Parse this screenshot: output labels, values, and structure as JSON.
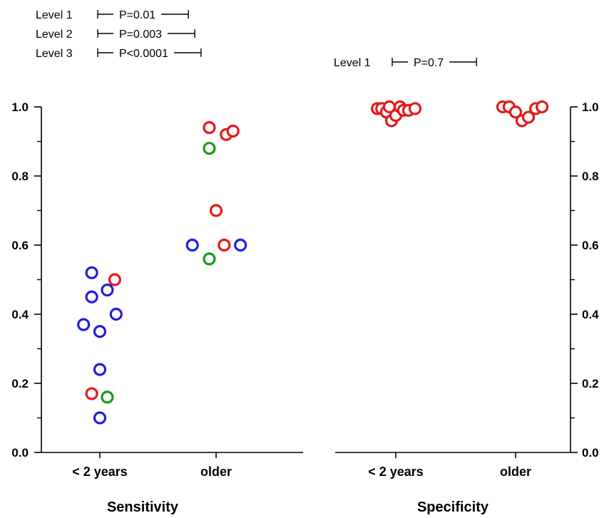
{
  "colors": {
    "level_1": "#e31a1c",
    "level_2": "#1a9a1a",
    "level_3": "#1f1fe0",
    "axis": "#000000",
    "text": "#000000"
  },
  "chart_data": [
    {
      "type": "scatter",
      "title": "Sensitivity",
      "categories": [
        "< 2 years",
        "older"
      ],
      "ylim": [
        0,
        1
      ],
      "yticks": [
        "0.0",
        "0.2",
        "0.4",
        "0.6",
        "0.8",
        "1.0"
      ],
      "y_axis_side": "left",
      "grid": false,
      "legend_placement": "top-left",
      "comparisons": [
        {
          "label": "Level 1",
          "p": "P=0.01"
        },
        {
          "label": "Level 2",
          "p": "P=0.003"
        },
        {
          "label": "Level 3",
          "p": "P<0.0001"
        }
      ],
      "series": [
        {
          "level": 1,
          "color": "#e31a1c",
          "points": [
            {
              "category": "< 2 years",
              "offset": 0.22,
              "y": 0.5
            },
            {
              "category": "< 2 years",
              "offset": -0.12,
              "y": 0.17
            },
            {
              "category": "older",
              "offset": -0.1,
              "y": 0.94
            },
            {
              "category": "older",
              "offset": 0.15,
              "y": 0.92
            },
            {
              "category": "older",
              "offset": 0.25,
              "y": 0.93
            },
            {
              "category": "older",
              "offset": 0.0,
              "y": 0.7
            },
            {
              "category": "older",
              "offset": 0.12,
              "y": 0.6
            }
          ]
        },
        {
          "level": 2,
          "color": "#1a9a1a",
          "points": [
            {
              "category": "< 2 years",
              "offset": 0.11,
              "y": 0.16
            },
            {
              "category": "older",
              "offset": -0.1,
              "y": 0.88
            },
            {
              "category": "older",
              "offset": -0.1,
              "y": 0.56
            }
          ]
        },
        {
          "level": 3,
          "color": "#1f1fe0",
          "points": [
            {
              "category": "< 2 years",
              "offset": -0.12,
              "y": 0.52
            },
            {
              "category": "< 2 years",
              "offset": -0.12,
              "y": 0.45
            },
            {
              "category": "< 2 years",
              "offset": 0.11,
              "y": 0.47
            },
            {
              "category": "< 2 years",
              "offset": 0.24,
              "y": 0.4
            },
            {
              "category": "< 2 years",
              "offset": -0.24,
              "y": 0.37
            },
            {
              "category": "< 2 years",
              "offset": 0.0,
              "y": 0.35
            },
            {
              "category": "< 2 years",
              "offset": 0.0,
              "y": 0.24
            },
            {
              "category": "< 2 years",
              "offset": 0.0,
              "y": 0.1
            },
            {
              "category": "older",
              "offset": -0.35,
              "y": 0.6
            },
            {
              "category": "older",
              "offset": 0.36,
              "y": 0.6
            }
          ]
        }
      ]
    },
    {
      "type": "scatter",
      "title": "Specificity",
      "categories": [
        "< 2 years",
        "older"
      ],
      "ylim": [
        0,
        1
      ],
      "yticks": [
        "0.0",
        "0.2",
        "0.4",
        "0.6",
        "0.8",
        "1.0"
      ],
      "y_axis_side": "right",
      "grid": false,
      "legend_placement": "top",
      "comparisons": [
        {
          "label": "Level 1",
          "p": "P=0.7"
        }
      ],
      "series": [
        {
          "level": 1,
          "color": "#e31a1c",
          "points": [
            {
              "category": "< 2 years",
              "offset": -0.43,
              "y": 0.995
            },
            {
              "category": "< 2 years",
              "offset": -0.33,
              "y": 0.995
            },
            {
              "category": "< 2 years",
              "offset": -0.22,
              "y": 0.985
            },
            {
              "category": "< 2 years",
              "offset": -0.15,
              "y": 1.0
            },
            {
              "category": "< 2 years",
              "offset": -0.1,
              "y": 0.96
            },
            {
              "category": "< 2 years",
              "offset": 0.0,
              "y": 0.975
            },
            {
              "category": "< 2 years",
              "offset": 0.1,
              "y": 1.0
            },
            {
              "category": "< 2 years",
              "offset": 0.18,
              "y": 0.99
            },
            {
              "category": "< 2 years",
              "offset": 0.3,
              "y": 0.99
            },
            {
              "category": "< 2 years",
              "offset": 0.45,
              "y": 0.995
            },
            {
              "category": "older",
              "offset": -0.3,
              "y": 1.0
            },
            {
              "category": "older",
              "offset": -0.15,
              "y": 1.0
            },
            {
              "category": "older",
              "offset": 0.0,
              "y": 0.985
            },
            {
              "category": "older",
              "offset": 0.15,
              "y": 0.96
            },
            {
              "category": "older",
              "offset": 0.3,
              "y": 0.97
            },
            {
              "category": "older",
              "offset": 0.47,
              "y": 0.995
            },
            {
              "category": "older",
              "offset": 0.62,
              "y": 1.0
            }
          ]
        }
      ]
    }
  ]
}
